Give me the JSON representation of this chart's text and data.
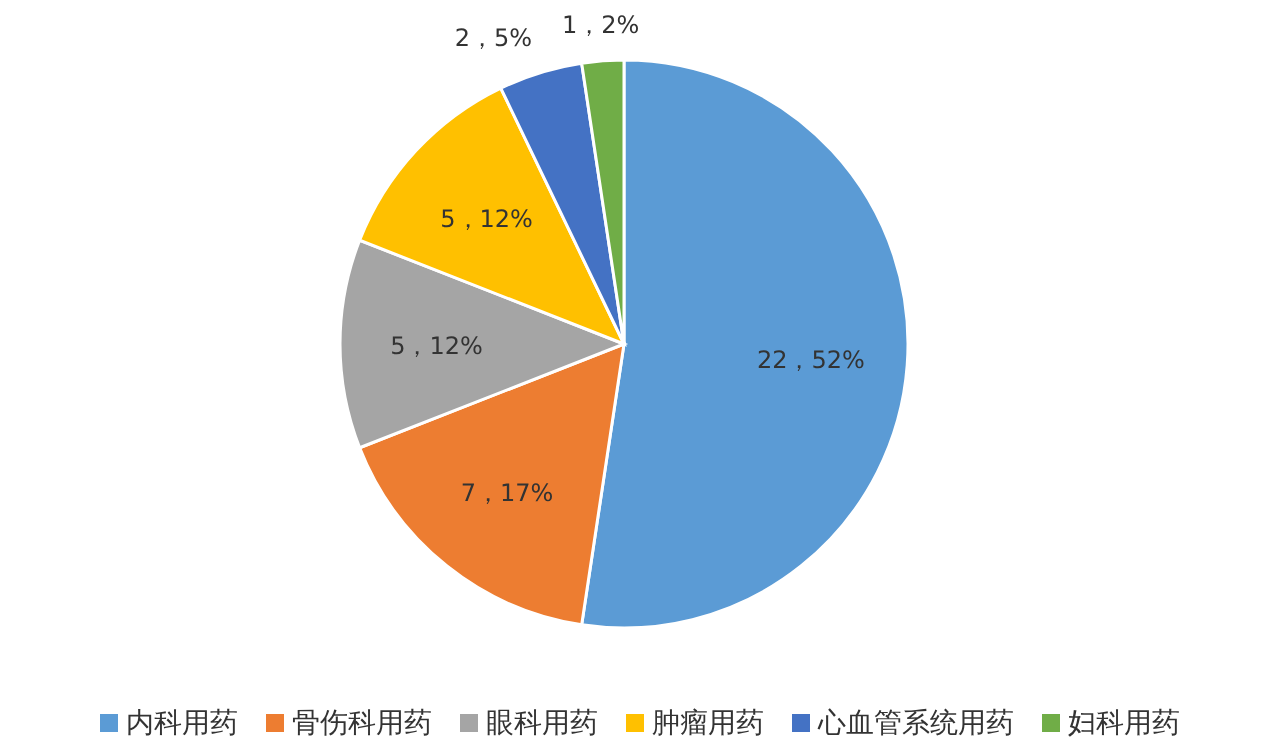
{
  "chart_data": {
    "type": "pie",
    "categories": [
      "内科用药",
      "骨伤科用药",
      "眼科用药",
      "肿瘤用药",
      "心血管系统用药",
      "妇科用药"
    ],
    "values": [
      22,
      7,
      5,
      5,
      2,
      1
    ],
    "colors": [
      "#5b9bd5",
      "#ed7d31",
      "#a5a5a5",
      "#ffc000",
      "#4472c4",
      "#70ad47"
    ],
    "value_labels": [
      "22，52%",
      "7，17%",
      "5，12%",
      "5，12%",
      "2，5%",
      "1，2%"
    ],
    "legend": "bottom"
  }
}
